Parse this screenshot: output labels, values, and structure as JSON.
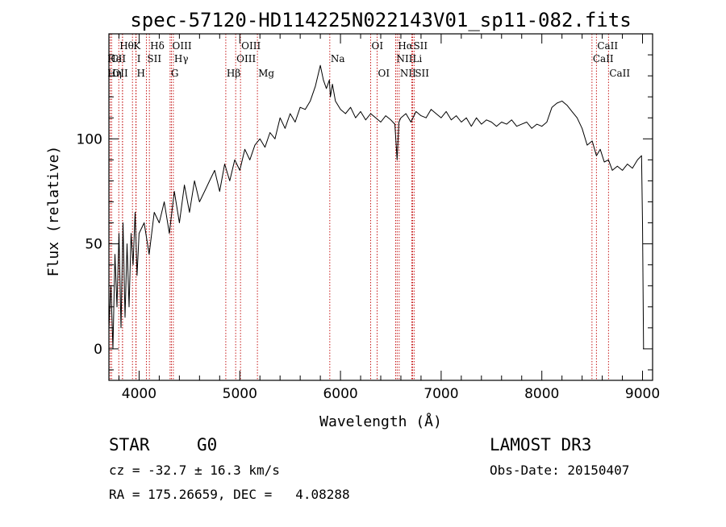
{
  "chart_data": {
    "type": "line",
    "title": "spec-57120-HD114225N022143V01_sp11-082.fits",
    "xlabel": "Wavelength (Å)",
    "ylabel": "Flux (relative)",
    "xlim": [
      3700,
      9100
    ],
    "ylim": [
      -15,
      150
    ],
    "x_ticks": [
      4000,
      5000,
      6000,
      7000,
      8000,
      9000
    ],
    "y_ticks": [
      0,
      50,
      100
    ],
    "x_minor_step": 200,
    "y_minor_step": 10,
    "series": [
      {
        "name": "flux",
        "x": [
          3700,
          3720,
          3740,
          3760,
          3780,
          3800,
          3820,
          3840,
          3860,
          3880,
          3900,
          3920,
          3940,
          3960,
          3980,
          4000,
          4050,
          4100,
          4150,
          4200,
          4250,
          4300,
          4350,
          4400,
          4450,
          4500,
          4550,
          4600,
          4650,
          4700,
          4750,
          4800,
          4850,
          4900,
          4950,
          5000,
          5050,
          5100,
          5150,
          5200,
          5250,
          5300,
          5350,
          5400,
          5450,
          5500,
          5550,
          5600,
          5650,
          5700,
          5750,
          5800,
          5830,
          5860,
          5890,
          5900,
          5920,
          5950,
          6000,
          6050,
          6100,
          6150,
          6200,
          6250,
          6300,
          6350,
          6400,
          6450,
          6500,
          6540,
          6563,
          6580,
          6600,
          6650,
          6700,
          6750,
          6800,
          6850,
          6900,
          6950,
          7000,
          7050,
          7100,
          7150,
          7200,
          7250,
          7300,
          7350,
          7400,
          7450,
          7500,
          7550,
          7600,
          7650,
          7700,
          7750,
          7800,
          7850,
          7900,
          7950,
          8000,
          8050,
          8100,
          8150,
          8200,
          8250,
          8300,
          8350,
          8400,
          8450,
          8500,
          8542,
          8580,
          8620,
          8662,
          8700,
          8750,
          8800,
          8850,
          8900,
          8950,
          8990,
          9000,
          9010
        ],
        "values": [
          10,
          30,
          0,
          45,
          20,
          55,
          10,
          60,
          15,
          50,
          20,
          55,
          40,
          65,
          35,
          55,
          60,
          45,
          65,
          60,
          70,
          55,
          75,
          60,
          78,
          65,
          80,
          70,
          75,
          80,
          85,
          75,
          88,
          80,
          90,
          85,
          95,
          90,
          97,
          100,
          96,
          103,
          100,
          110,
          105,
          112,
          108,
          115,
          114,
          118,
          125,
          135,
          128,
          124,
          128,
          120,
          126,
          118,
          114,
          112,
          115,
          110,
          113,
          109,
          112,
          110,
          108,
          111,
          109,
          107,
          90,
          108,
          110,
          112,
          108,
          113,
          111,
          110,
          114,
          112,
          110,
          113,
          109,
          111,
          108,
          110,
          106,
          110,
          107,
          109,
          108,
          106,
          108,
          107,
          109,
          106,
          107,
          108,
          105,
          107,
          106,
          108,
          115,
          117,
          118,
          116,
          113,
          110,
          105,
          97,
          99,
          92,
          95,
          89,
          90,
          85,
          87,
          85,
          88,
          86,
          90,
          92,
          60,
          0
        ]
      }
    ],
    "line_marks": [
      {
        "name": "CII",
        "x": 3712,
        "row": 1,
        "side": "right"
      },
      {
        "name": "OII",
        "x": 3727,
        "row": 2,
        "side": "right"
      },
      {
        "name": "Hθ",
        "x": 3798,
        "row": 0,
        "side": "right"
      },
      {
        "name": "He",
        "x": 3835,
        "row": 1,
        "side": "left"
      },
      {
        "name": "Hη",
        "x": 3835,
        "row": 2,
        "side": "left"
      },
      {
        "name": "K",
        "x": 3934,
        "row": 0,
        "side": "right"
      },
      {
        "name": "H",
        "x": 3968,
        "row": 2,
        "side": "right"
      },
      {
        "name": "I",
        "x": 3970,
        "row": 1,
        "side": "right"
      },
      {
        "name": "SII",
        "x": 4072,
        "row": 1,
        "side": "right"
      },
      {
        "name": "Hδ",
        "x": 4102,
        "row": 0,
        "side": "right"
      },
      {
        "name": "OIII",
        "x": 4321,
        "row": 0,
        "side": "right"
      },
      {
        "name": "Hγ",
        "x": 4340,
        "row": 1,
        "side": "right"
      },
      {
        "name": "G",
        "x": 4308,
        "row": 2,
        "side": "right"
      },
      {
        "name": "Hβ",
        "x": 4861,
        "row": 2,
        "side": "right"
      },
      {
        "name": "OIII",
        "x": 4959,
        "row": 1,
        "side": "right"
      },
      {
        "name": "OIII",
        "x": 5007,
        "row": 0,
        "side": "right"
      },
      {
        "name": "Mg",
        "x": 5175,
        "row": 2,
        "side": "right"
      },
      {
        "name": "Na",
        "x": 5894,
        "row": 1,
        "side": "right"
      },
      {
        "name": "OI",
        "x": 6300,
        "row": 0,
        "side": "right"
      },
      {
        "name": "OI",
        "x": 6364,
        "row": 2,
        "side": "right"
      },
      {
        "name": "NII",
        "x": 6548,
        "row": 1,
        "side": "right"
      },
      {
        "name": "NII",
        "x": 6583,
        "row": 2,
        "side": "right"
      },
      {
        "name": "Hα",
        "x": 6563,
        "row": 0,
        "side": "right"
      },
      {
        "name": "Li",
        "x": 6708,
        "row": 1,
        "side": "right"
      },
      {
        "name": "SII",
        "x": 6716,
        "row": 0,
        "side": "right"
      },
      {
        "name": "SII",
        "x": 6731,
        "row": 2,
        "side": "right"
      },
      {
        "name": "CaII",
        "x": 8498,
        "row": 1,
        "side": "right"
      },
      {
        "name": "CaII",
        "x": 8542,
        "row": 0,
        "side": "right"
      },
      {
        "name": "CaII",
        "x": 8662,
        "row": 2,
        "side": "right"
      }
    ]
  },
  "info": {
    "object_class": "STAR",
    "subclass": "G0",
    "survey": "LAMOST DR3",
    "redshift": "cz = -32.7 ± 16.3 km/s",
    "obs_date": "Obs-Date: 20150407",
    "coords": "RA = 175.26659, DEC =   4.08288"
  },
  "colors": {
    "line_mark": "#c00000",
    "spectrum": "#000000",
    "axis": "#000000"
  }
}
